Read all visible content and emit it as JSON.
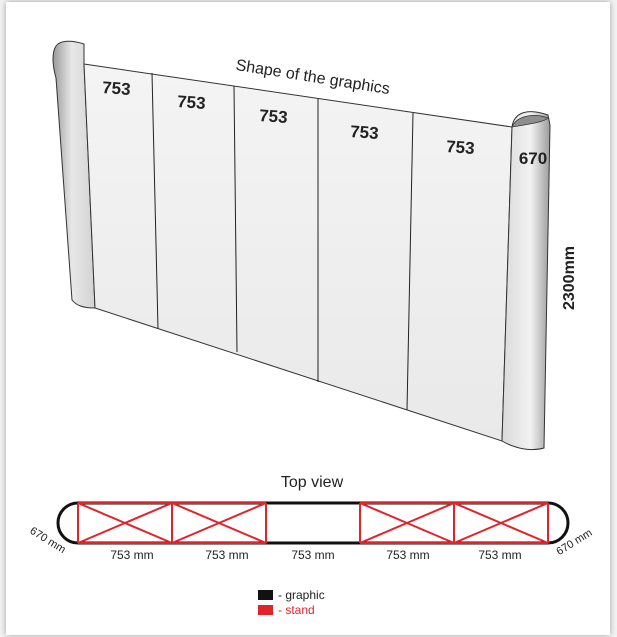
{
  "shape": {
    "title": "Shape of the graphics",
    "panel_labels": [
      "753",
      "753",
      "753",
      "753",
      "753",
      "670"
    ],
    "height_label": "2300mm"
  },
  "top_view": {
    "title": "Top view",
    "left_end_label": "670 mm",
    "right_end_label": "670 mm",
    "segment_labels": [
      "753 mm",
      "753 mm",
      "753 mm",
      "753 mm",
      "753 mm"
    ]
  },
  "legend": {
    "graphic_label": "- graphic",
    "stand_label": "- stand",
    "graphic_color": "#111111",
    "stand_color": "#e0242c"
  }
}
